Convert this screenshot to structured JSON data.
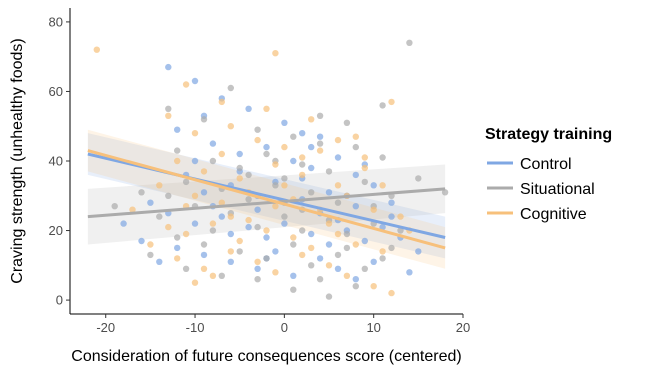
{
  "chart_data": {
    "type": "scatter",
    "title": "",
    "xlabel": "Consideration of future consequences score (centered)",
    "ylabel": "Craving strength (unhealthy foods)",
    "xlim": [
      -24,
      20
    ],
    "ylim": [
      -4,
      84
    ],
    "x_ticks": [
      -20,
      -10,
      0,
      10,
      20
    ],
    "y_ticks": [
      0,
      20,
      40,
      60,
      80
    ],
    "grid": false,
    "legend": {
      "title": "Strategy training",
      "position": "right"
    },
    "series": [
      {
        "name": "Control",
        "color": "#7FA7E3",
        "trend": {
          "x": [
            -22,
            18
          ],
          "y": [
            42,
            18
          ],
          "ci_lower": [
            36,
            12
          ],
          "ci_upper": [
            48,
            24
          ]
        },
        "points": [
          [
            -13,
            67
          ],
          [
            -10,
            63
          ],
          [
            -7,
            58
          ],
          [
            -4,
            55
          ],
          [
            0,
            51
          ],
          [
            2,
            48
          ],
          [
            4,
            47
          ],
          [
            -12,
            49
          ],
          [
            -8,
            45
          ],
          [
            -5,
            42
          ],
          [
            -2,
            44
          ],
          [
            1,
            40
          ],
          [
            3,
            38
          ],
          [
            6,
            41
          ],
          [
            9,
            39
          ],
          [
            -11,
            36
          ],
          [
            -9,
            31
          ],
          [
            -6,
            33
          ],
          [
            -3,
            30
          ],
          [
            -1,
            34
          ],
          [
            2,
            29
          ],
          [
            5,
            31
          ],
          [
            8,
            27
          ],
          [
            10,
            33
          ],
          [
            12,
            28
          ],
          [
            -15,
            28
          ],
          [
            -13,
            25
          ],
          [
            -10,
            22
          ],
          [
            -7,
            24
          ],
          [
            -4,
            21
          ],
          [
            -2,
            18
          ],
          [
            0,
            22
          ],
          [
            3,
            19
          ],
          [
            5,
            16
          ],
          [
            7,
            20
          ],
          [
            9,
            17
          ],
          [
            11,
            21
          ],
          [
            13,
            18
          ],
          [
            -12,
            15
          ],
          [
            -9,
            13
          ],
          [
            -6,
            11
          ],
          [
            -3,
            9
          ],
          [
            -1,
            14
          ],
          [
            1,
            7
          ],
          [
            4,
            12
          ],
          [
            6,
            9
          ],
          [
            8,
            6
          ],
          [
            10,
            11
          ],
          [
            -14,
            11
          ],
          [
            -18,
            22
          ],
          [
            15,
            14
          ],
          [
            -5,
            37
          ],
          [
            2,
            35
          ],
          [
            7,
            30
          ],
          [
            -8,
            27
          ],
          [
            4,
            25
          ],
          [
            0,
            28
          ],
          [
            -3,
            26
          ],
          [
            12,
            24
          ],
          [
            6,
            23
          ],
          [
            -10,
            40
          ],
          [
            14,
            8
          ],
          [
            -16,
            17
          ],
          [
            -6,
            19
          ],
          [
            3,
            44
          ],
          [
            -9,
            53
          ],
          [
            8,
            36
          ],
          [
            -2,
            12
          ]
        ]
      },
      {
        "name": "Situational",
        "color": "#ABABAB",
        "trend": {
          "x": [
            -22,
            18
          ],
          "y": [
            24,
            32
          ],
          "ci_lower": [
            16,
            25
          ],
          "ci_upper": [
            32,
            39
          ]
        },
        "points": [
          [
            -13,
            55
          ],
          [
            -9,
            52
          ],
          [
            -6,
            61
          ],
          [
            -3,
            49
          ],
          [
            1,
            47
          ],
          [
            4,
            53
          ],
          [
            7,
            51
          ],
          [
            11,
            56
          ],
          [
            14,
            74
          ],
          [
            -12,
            43
          ],
          [
            -8,
            40
          ],
          [
            -5,
            38
          ],
          [
            -2,
            42
          ],
          [
            2,
            39
          ],
          [
            5,
            37
          ],
          [
            8,
            44
          ],
          [
            11,
            41
          ],
          [
            -11,
            34
          ],
          [
            -7,
            32
          ],
          [
            -4,
            29
          ],
          [
            -1,
            33
          ],
          [
            3,
            31
          ],
          [
            6,
            28
          ],
          [
            9,
            34
          ],
          [
            12,
            30
          ],
          [
            -14,
            24
          ],
          [
            -10,
            27
          ],
          [
            -6,
            25
          ],
          [
            -3,
            21
          ],
          [
            0,
            24
          ],
          [
            2,
            20
          ],
          [
            5,
            23
          ],
          [
            7,
            19
          ],
          [
            10,
            22
          ],
          [
            13,
            20
          ],
          [
            -12,
            18
          ],
          [
            -9,
            16
          ],
          [
            -5,
            14
          ],
          [
            -2,
            12
          ],
          [
            1,
            16
          ],
          [
            3,
            10
          ],
          [
            6,
            13
          ],
          [
            9,
            9
          ],
          [
            12,
            15
          ],
          [
            -15,
            13
          ],
          [
            -11,
            9
          ],
          [
            -7,
            7
          ],
          [
            4,
            6
          ],
          [
            8,
            4
          ],
          [
            1,
            3
          ],
          [
            5,
            1
          ],
          [
            -3,
            6
          ],
          [
            18,
            31
          ],
          [
            15,
            35
          ],
          [
            -16,
            31
          ],
          [
            -19,
            27
          ],
          [
            0,
            35
          ],
          [
            -8,
            20
          ],
          [
            10,
            27
          ],
          [
            4,
            45
          ],
          [
            -1,
            40
          ],
          [
            7,
            15
          ],
          [
            11,
            12
          ],
          [
            -13,
            30
          ],
          [
            2,
            26
          ],
          [
            -4,
            36
          ]
        ]
      },
      {
        "name": "Cognitive",
        "color": "#F7C07B",
        "trend": {
          "x": [
            -22,
            18
          ],
          "y": [
            43,
            15
          ],
          "ci_lower": [
            37,
            9
          ],
          "ci_upper": [
            49,
            21
          ]
        },
        "points": [
          [
            -21,
            72
          ],
          [
            -11,
            62
          ],
          [
            -7,
            57
          ],
          [
            -1,
            71
          ],
          [
            -13,
            53
          ],
          [
            -10,
            48
          ],
          [
            -6,
            50
          ],
          [
            -3,
            46
          ],
          [
            0,
            44
          ],
          [
            4,
            43
          ],
          [
            8,
            47
          ],
          [
            12,
            57
          ],
          [
            -12,
            40
          ],
          [
            -9,
            37
          ],
          [
            -5,
            35
          ],
          [
            -1,
            39
          ],
          [
            2,
            36
          ],
          [
            6,
            33
          ],
          [
            9,
            38
          ],
          [
            -14,
            33
          ],
          [
            -10,
            30
          ],
          [
            -7,
            28
          ],
          [
            -4,
            31
          ],
          [
            -1,
            27
          ],
          [
            1,
            29
          ],
          [
            4,
            26
          ],
          [
            7,
            30
          ],
          [
            10,
            26
          ],
          [
            13,
            24
          ],
          [
            -13,
            21
          ],
          [
            -11,
            19
          ],
          [
            -8,
            22
          ],
          [
            -5,
            17
          ],
          [
            -2,
            20
          ],
          [
            1,
            18
          ],
          [
            3,
            15
          ],
          [
            6,
            19
          ],
          [
            8,
            16
          ],
          [
            11,
            14
          ],
          [
            -12,
            12
          ],
          [
            -9,
            9
          ],
          [
            -6,
            14
          ],
          [
            -3,
            11
          ],
          [
            -1,
            8
          ],
          [
            2,
            13
          ],
          [
            5,
            10
          ],
          [
            7,
            7
          ],
          [
            10,
            4
          ],
          [
            12,
            2
          ],
          [
            -10,
            5
          ],
          [
            -17,
            26
          ],
          [
            -15,
            16
          ],
          [
            -7,
            42
          ],
          [
            3,
            52
          ],
          [
            9,
            41
          ],
          [
            -4,
            23
          ],
          [
            5,
            22
          ],
          [
            11,
            33
          ],
          [
            -8,
            7
          ],
          [
            0,
            33
          ],
          [
            14,
            20
          ],
          [
            -2,
            55
          ],
          [
            6,
            46
          ],
          [
            -6,
            24
          ],
          [
            2,
            41
          ],
          [
            -11,
            27
          ]
        ]
      }
    ]
  }
}
